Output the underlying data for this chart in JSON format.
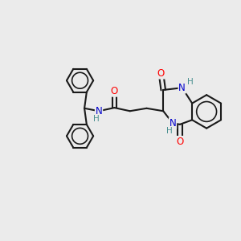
{
  "background_color": "#ebebeb",
  "bond_color": "#1a1a1a",
  "atom_colors": {
    "O": "#ff0000",
    "N": "#0000cc",
    "H": "#4a9090",
    "C": "#1a1a1a"
  },
  "figsize": [
    3.0,
    3.0
  ],
  "dpi": 100,
  "bond_lw": 1.5,
  "font_size_atom": 8.5,
  "font_size_h": 7.5,
  "xlim": [
    -2.6,
    1.7
  ],
  "ylim": [
    -1.7,
    1.5
  ]
}
